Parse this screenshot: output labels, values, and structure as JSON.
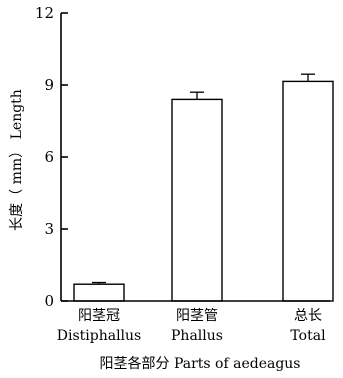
{
  "chart_data": {
    "type": "bar",
    "categories": [
      {
        "zh": "阳茎冠",
        "en": "Distiphallus"
      },
      {
        "zh": "阳茎管",
        "en": "Phallus"
      },
      {
        "zh": "总长",
        "en": "Total"
      }
    ],
    "values": [
      0.7,
      8.4,
      9.15
    ],
    "errors": [
      0.07,
      0.3,
      0.3
    ],
    "xlabel": "阳茎各部分 Parts of aedeagus",
    "ylabel": "长度（ mm） Length",
    "ylim": [
      0,
      12
    ],
    "yticks": [
      "0",
      "3",
      "6",
      "9",
      "12"
    ],
    "grid": false,
    "bar_fill": "#ffffff",
    "bar_stroke": "#000000"
  }
}
